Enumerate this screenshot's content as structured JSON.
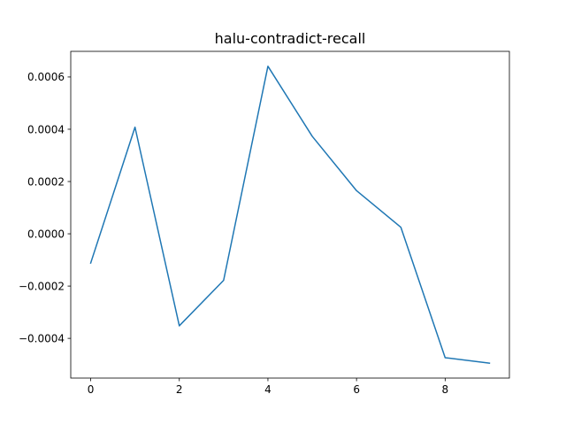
{
  "chart_data": {
    "type": "line",
    "title": "halu-contradict-recall",
    "xlabel": "",
    "ylabel": "",
    "x": [
      0,
      1,
      2,
      3,
      4,
      5,
      6,
      7,
      8,
      9
    ],
    "series": [
      {
        "values": [
          -0.000112,
          0.000408,
          -0.000352,
          -0.000178,
          0.000641,
          0.000373,
          0.000165,
          2.5e-05,
          -0.000474,
          -0.000495
        ],
        "color": "#1f77b4"
      }
    ],
    "xlim": [
      -0.45,
      9.45
    ],
    "ylim": [
      -0.000552,
      0.000698
    ],
    "xticks": [
      0,
      2,
      4,
      6,
      8
    ],
    "xtick_labels": [
      "0",
      "2",
      "4",
      "6",
      "8"
    ],
    "yticks": [
      -0.0004,
      -0.0002,
      0.0,
      0.0002,
      0.0004,
      0.0006
    ],
    "ytick_labels": [
      "−0.0004",
      "−0.0002",
      "0.0000",
      "0.0002",
      "0.0004",
      "0.0006"
    ],
    "grid": false,
    "legend": false
  }
}
